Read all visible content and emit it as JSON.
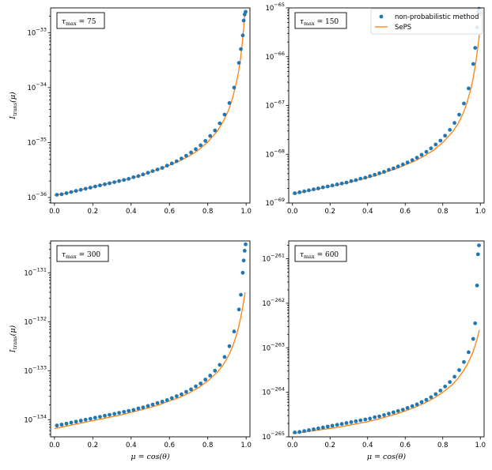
{
  "chart_data": [
    {
      "type": "scatter",
      "panel": "top-left",
      "annotation": "τ_max = 75",
      "ylabel": "I_trans(μ)",
      "xlabel": "",
      "yscale": "log",
      "xlim": [
        -0.02,
        1.02
      ],
      "ylim_log10": [
        -36.1,
        -32.55
      ],
      "xticks": [
        0.0,
        0.2,
        0.4,
        0.6,
        0.8,
        1.0
      ],
      "ytick_exponents": [
        -36,
        -35,
        -34,
        -33
      ],
      "colors": {
        "points": "#1f77b4",
        "line": "#ff7f0e"
      },
      "series": [
        {
          "name": "non-probabilistic method",
          "x": [
            0.0125,
            0.0375,
            0.0625,
            0.0875,
            0.1125,
            0.1375,
            0.1625,
            0.1875,
            0.2125,
            0.2375,
            0.2625,
            0.2875,
            0.3125,
            0.3375,
            0.3625,
            0.3875,
            0.4125,
            0.4375,
            0.4625,
            0.4875,
            0.5125,
            0.5375,
            0.5625,
            0.5875,
            0.6125,
            0.6375,
            0.6625,
            0.6875,
            0.7125,
            0.7375,
            0.7625,
            0.7875,
            0.8125,
            0.8375,
            0.8625,
            0.8875,
            0.9125,
            0.9375,
            0.9625,
            0.9725,
            0.9825,
            0.9875,
            0.9925,
            0.9975
          ],
          "y_log10": [
            -35.95,
            -35.94,
            -35.92,
            -35.9,
            -35.88,
            -35.86,
            -35.84,
            -35.82,
            -35.8,
            -35.78,
            -35.76,
            -35.74,
            -35.72,
            -35.7,
            -35.68,
            -35.66,
            -35.63,
            -35.61,
            -35.58,
            -35.55,
            -35.52,
            -35.49,
            -35.46,
            -35.42,
            -35.38,
            -35.34,
            -35.29,
            -35.24,
            -35.18,
            -35.12,
            -35.05,
            -34.97,
            -34.88,
            -34.78,
            -34.65,
            -34.49,
            -34.28,
            -34.0,
            -33.55,
            -33.3,
            -33.05,
            -32.78,
            -32.67,
            -32.62
          ]
        },
        {
          "name": "SePS",
          "x": [
            0.0,
            0.05,
            0.1,
            0.15,
            0.2,
            0.25,
            0.3,
            0.35,
            0.4,
            0.45,
            0.5,
            0.55,
            0.6,
            0.65,
            0.7,
            0.75,
            0.8,
            0.85,
            0.88,
            0.91,
            0.93,
            0.95,
            0.96,
            0.97,
            0.98,
            0.99,
            0.995
          ],
          "y_log10": [
            -35.96,
            -35.93,
            -35.89,
            -35.85,
            -35.81,
            -35.77,
            -35.73,
            -35.69,
            -35.65,
            -35.6,
            -35.54,
            -35.48,
            -35.41,
            -35.34,
            -35.25,
            -35.14,
            -34.99,
            -34.79,
            -34.62,
            -34.4,
            -34.18,
            -33.9,
            -33.72,
            -33.5,
            -33.2,
            -32.8,
            -32.6
          ]
        }
      ]
    },
    {
      "type": "scatter",
      "panel": "top-right",
      "annotation": "τ_max = 150",
      "ylabel": "",
      "xlabel": "",
      "yscale": "log",
      "xlim": [
        -0.02,
        1.02
      ],
      "ylim_log10": [
        -69.0,
        -65.0
      ],
      "xticks": [
        0.0,
        0.2,
        0.4,
        0.6,
        0.8,
        1.0
      ],
      "ytick_exponents": [
        -69,
        -68,
        -67,
        -66,
        -65
      ],
      "legend": {
        "position": "top-right",
        "entries": [
          "non-probabilistic method",
          "SePS"
        ]
      },
      "colors": {
        "points": "#1f77b4",
        "line": "#ff7f0e"
      },
      "series": [
        {
          "name": "non-probabilistic method",
          "x": [
            0.0125,
            0.0375,
            0.0625,
            0.0875,
            0.1125,
            0.1375,
            0.1625,
            0.1875,
            0.2125,
            0.2375,
            0.2625,
            0.2875,
            0.3125,
            0.3375,
            0.3625,
            0.3875,
            0.4125,
            0.4375,
            0.4625,
            0.4875,
            0.5125,
            0.5375,
            0.5625,
            0.5875,
            0.6125,
            0.6375,
            0.6625,
            0.6875,
            0.7125,
            0.7375,
            0.7625,
            0.7875,
            0.8125,
            0.8375,
            0.8625,
            0.8875,
            0.9125,
            0.9375,
            0.9625,
            0.9725,
            0.9825,
            0.9875,
            0.9925,
            0.9975
          ],
          "y_log10": [
            -68.8,
            -68.78,
            -68.76,
            -68.74,
            -68.72,
            -68.7,
            -68.68,
            -68.66,
            -68.64,
            -68.62,
            -68.6,
            -68.58,
            -68.55,
            -68.53,
            -68.5,
            -68.48,
            -68.45,
            -68.42,
            -68.39,
            -68.36,
            -68.32,
            -68.29,
            -68.25,
            -68.21,
            -68.17,
            -68.12,
            -68.07,
            -68.01,
            -67.95,
            -67.88,
            -67.8,
            -67.72,
            -67.62,
            -67.5,
            -67.36,
            -67.19,
            -66.96,
            -66.65,
            -66.15,
            -65.82,
            -65.4,
            -65.08,
            -65.02,
            -65.1
          ]
        },
        {
          "name": "SePS",
          "x": [
            0.0,
            0.05,
            0.1,
            0.15,
            0.2,
            0.25,
            0.3,
            0.35,
            0.4,
            0.45,
            0.5,
            0.55,
            0.6,
            0.65,
            0.7,
            0.75,
            0.8,
            0.85,
            0.88,
            0.91,
            0.93,
            0.95,
            0.96,
            0.97,
            0.98,
            0.99,
            0.995
          ],
          "y_log10": [
            -68.82,
            -68.78,
            -68.74,
            -68.7,
            -68.66,
            -68.62,
            -68.58,
            -68.53,
            -68.48,
            -68.43,
            -68.36,
            -68.3,
            -68.22,
            -68.14,
            -68.04,
            -67.92,
            -67.76,
            -67.55,
            -67.38,
            -67.15,
            -66.93,
            -66.65,
            -66.47,
            -66.26,
            -66.0,
            -65.7,
            -65.55
          ]
        }
      ]
    },
    {
      "type": "scatter",
      "panel": "bottom-left",
      "annotation": "τ_max = 300",
      "ylabel": "I_trans(μ)",
      "xlabel": "μ = cos(θ)",
      "yscale": "log",
      "xlim": [
        -0.02,
        1.02
      ],
      "ylim_log10": [
        -134.35,
        -130.35
      ],
      "xticks": [
        0.0,
        0.2,
        0.4,
        0.6,
        0.8,
        1.0
      ],
      "ytick_exponents": [
        -134,
        -133,
        -132,
        -131
      ],
      "colors": {
        "points": "#1f77b4",
        "line": "#ff7f0e"
      },
      "series": [
        {
          "name": "non-probabilistic method",
          "x": [
            0.0125,
            0.0375,
            0.0625,
            0.0875,
            0.1125,
            0.1375,
            0.1625,
            0.1875,
            0.2125,
            0.2375,
            0.2625,
            0.2875,
            0.3125,
            0.3375,
            0.3625,
            0.3875,
            0.4125,
            0.4375,
            0.4625,
            0.4875,
            0.5125,
            0.5375,
            0.5625,
            0.5875,
            0.6125,
            0.6375,
            0.6625,
            0.6875,
            0.7125,
            0.7375,
            0.7625,
            0.7875,
            0.8125,
            0.8375,
            0.8625,
            0.8875,
            0.9125,
            0.9375,
            0.9625,
            0.9725,
            0.9825,
            0.9875,
            0.9925,
            0.9975
          ],
          "y_log10": [
            -134.12,
            -134.1,
            -134.08,
            -134.06,
            -134.04,
            -134.02,
            -134.0,
            -133.98,
            -133.96,
            -133.94,
            -133.92,
            -133.9,
            -133.88,
            -133.86,
            -133.84,
            -133.82,
            -133.8,
            -133.77,
            -133.75,
            -133.72,
            -133.69,
            -133.66,
            -133.63,
            -133.6,
            -133.56,
            -133.52,
            -133.48,
            -133.43,
            -133.38,
            -133.32,
            -133.26,
            -133.18,
            -133.1,
            -133.0,
            -132.88,
            -132.72,
            -132.5,
            -132.2,
            -131.75,
            -131.45,
            -131.0,
            -130.75,
            -130.55,
            -130.42
          ]
        },
        {
          "name": "SePS",
          "x": [
            0.0,
            0.05,
            0.1,
            0.15,
            0.2,
            0.25,
            0.3,
            0.35,
            0.4,
            0.45,
            0.5,
            0.55,
            0.6,
            0.65,
            0.7,
            0.75,
            0.8,
            0.85,
            0.88,
            0.91,
            0.93,
            0.95,
            0.96,
            0.97,
            0.98,
            0.99,
            0.995
          ],
          "y_log10": [
            -134.18,
            -134.14,
            -134.1,
            -134.06,
            -134.02,
            -133.98,
            -133.94,
            -133.9,
            -133.85,
            -133.8,
            -133.75,
            -133.69,
            -133.62,
            -133.55,
            -133.46,
            -133.35,
            -133.21,
            -133.03,
            -132.88,
            -132.68,
            -132.5,
            -132.27,
            -132.12,
            -131.95,
            -131.75,
            -131.52,
            -131.4
          ]
        }
      ]
    },
    {
      "type": "scatter",
      "panel": "bottom-right",
      "annotation": "τ_max = 600",
      "ylabel": "",
      "xlabel": "μ = cos(θ)",
      "yscale": "log",
      "xlim": [
        -0.02,
        1.02
      ],
      "ylim_log10": [
        -265.0,
        -260.6
      ],
      "xticks": [
        0.0,
        0.2,
        0.4,
        0.6,
        0.8,
        1.0
      ],
      "ytick_exponents": [
        -265,
        -264,
        -263,
        -262,
        -261
      ],
      "colors": {
        "points": "#1f77b4",
        "line": "#ff7f0e"
      },
      "series": [
        {
          "name": "non-probabilistic method",
          "x": [
            0.0125,
            0.0375,
            0.0625,
            0.0875,
            0.1125,
            0.1375,
            0.1625,
            0.1875,
            0.2125,
            0.2375,
            0.2625,
            0.2875,
            0.3125,
            0.3375,
            0.3625,
            0.3875,
            0.4125,
            0.4375,
            0.4625,
            0.4875,
            0.5125,
            0.5375,
            0.5625,
            0.5875,
            0.6125,
            0.6375,
            0.6625,
            0.6875,
            0.7125,
            0.7375,
            0.7625,
            0.7875,
            0.8125,
            0.8375,
            0.8625,
            0.8875,
            0.9125,
            0.9375,
            0.9625,
            0.9725,
            0.9825,
            0.9875,
            0.9925,
            0.9975
          ],
          "y_log10": [
            -264.9,
            -264.89,
            -264.87,
            -264.85,
            -264.83,
            -264.81,
            -264.79,
            -264.77,
            -264.75,
            -264.73,
            -264.71,
            -264.69,
            -264.67,
            -264.65,
            -264.63,
            -264.61,
            -264.59,
            -264.56,
            -264.54,
            -264.51,
            -264.48,
            -264.45,
            -264.42,
            -264.39,
            -264.35,
            -264.31,
            -264.27,
            -264.22,
            -264.17,
            -264.11,
            -264.04,
            -263.96,
            -263.87,
            -263.77,
            -263.65,
            -263.5,
            -263.32,
            -263.1,
            -262.8,
            -262.45,
            -261.6,
            -260.9,
            -260.7,
            -260.5
          ]
        },
        {
          "name": "SePS",
          "x": [
            0.0,
            0.05,
            0.1,
            0.15,
            0.2,
            0.25,
            0.3,
            0.35,
            0.4,
            0.45,
            0.5,
            0.55,
            0.6,
            0.65,
            0.7,
            0.75,
            0.8,
            0.85,
            0.88,
            0.91,
            0.93,
            0.95,
            0.96,
            0.97,
            0.98,
            0.99,
            0.995
          ],
          "y_log10": [
            -264.92,
            -264.9,
            -264.87,
            -264.84,
            -264.81,
            -264.78,
            -264.74,
            -264.7,
            -264.66,
            -264.61,
            -264.55,
            -264.49,
            -264.42,
            -264.34,
            -264.25,
            -264.14,
            -264.0,
            -263.83,
            -263.69,
            -263.52,
            -263.38,
            -263.2,
            -263.1,
            -262.98,
            -262.84,
            -262.68,
            -262.6
          ]
        }
      ]
    }
  ]
}
